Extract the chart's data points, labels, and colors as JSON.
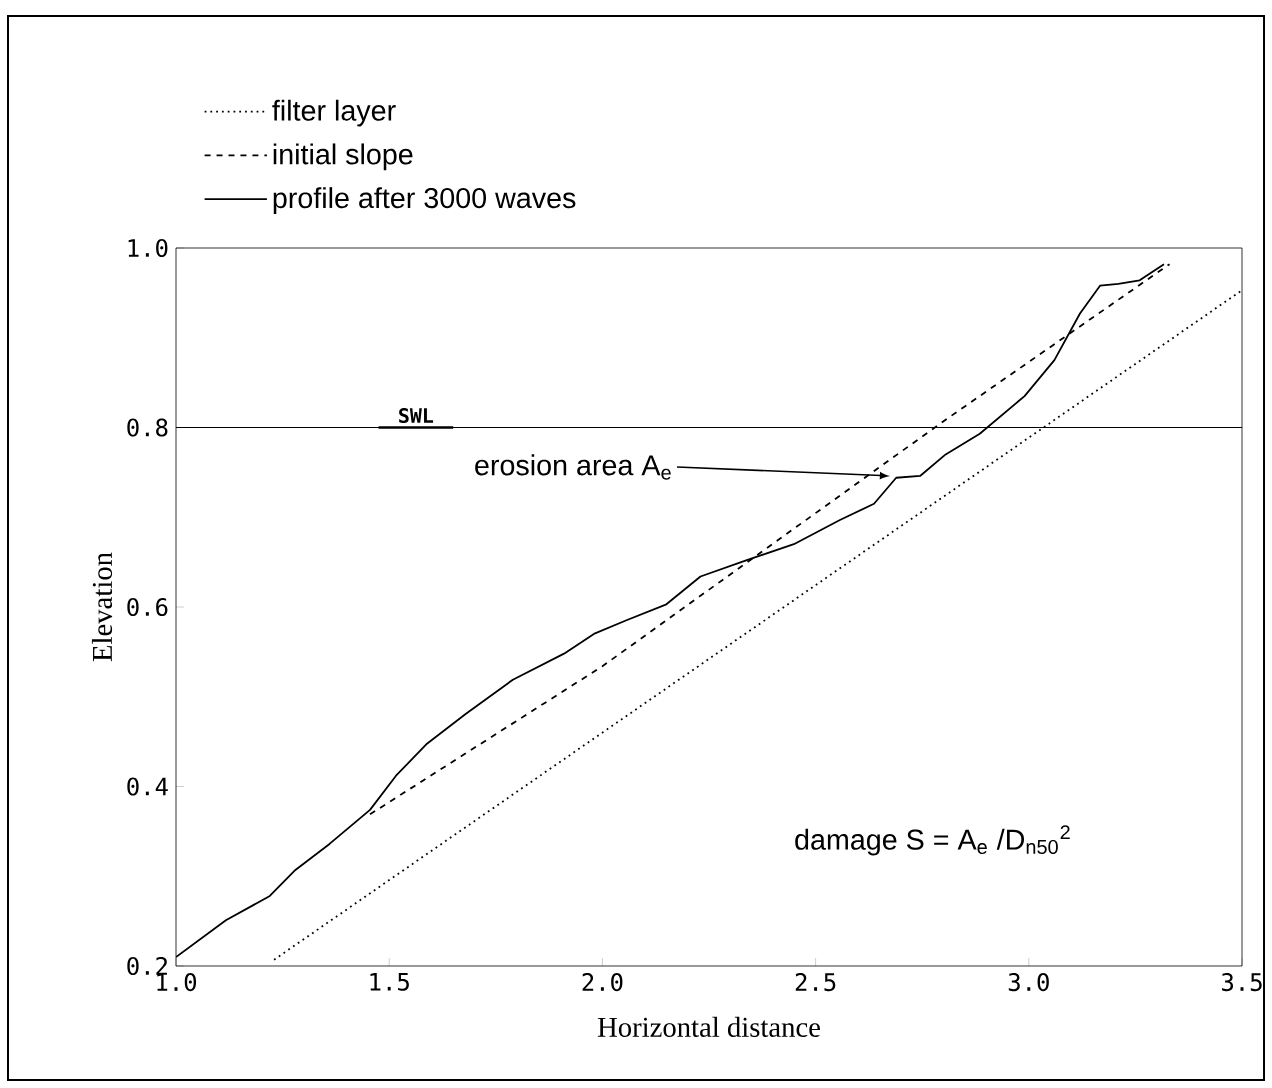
{
  "chart_data": {
    "type": "line",
    "xlabel": "Horizontal distance",
    "ylabel": "Elevation",
    "xlim": [
      1.0,
      3.5
    ],
    "ylim": [
      0.2,
      1.0
    ],
    "xticks": [
      {
        "value": 1.0,
        "label": "1.0"
      },
      {
        "value": 1.5,
        "label": "1.5"
      },
      {
        "value": 2.0,
        "label": "2.0"
      },
      {
        "value": 2.5,
        "label": "2.5"
      },
      {
        "value": 3.0,
        "label": "3.0"
      },
      {
        "value": 3.5,
        "label": "3.5"
      }
    ],
    "yticks": [
      {
        "value": 0.2,
        "label": "0.2"
      },
      {
        "value": 0.4,
        "label": "0.4"
      },
      {
        "value": 0.6,
        "label": "0.6"
      },
      {
        "value": 0.8,
        "label": "0.8"
      },
      {
        "value": 1.0,
        "label": "1.0"
      }
    ],
    "grid": false,
    "legend": "top",
    "marker": "none",
    "series": [
      {
        "name": "filter layer",
        "color": "#000000",
        "line_style": "dotted",
        "x": [
          1.23,
          3.5
        ],
        "values": [
          0.207,
          0.953
        ]
      },
      {
        "name": "initial slope",
        "color": "#000000",
        "line_style": "dashed",
        "x": [
          1.455,
          2.0,
          2.8,
          3.33
        ],
        "values": [
          0.369,
          0.534,
          0.807,
          0.982
        ]
      },
      {
        "name": "profile after 3000 waves",
        "color": "#000000",
        "line_style": "solid",
        "x": [
          1.0,
          1.117,
          1.22,
          1.28,
          1.36,
          1.455,
          1.516,
          1.587,
          1.68,
          1.79,
          1.91,
          1.98,
          2.055,
          2.15,
          2.23,
          2.337,
          2.449,
          2.557,
          2.637,
          2.689,
          2.745,
          2.805,
          2.885,
          2.99,
          3.06,
          3.12,
          3.167,
          3.21,
          3.26,
          3.317
        ],
        "values": [
          0.21,
          0.251,
          0.278,
          0.307,
          0.336,
          0.374,
          0.412,
          0.447,
          0.481,
          0.519,
          0.548,
          0.57,
          0.585,
          0.603,
          0.634,
          0.652,
          0.67,
          0.697,
          0.715,
          0.744,
          0.746,
          0.77,
          0.793,
          0.835,
          0.875,
          0.927,
          0.958,
          0.96,
          0.964,
          0.982
        ]
      }
    ],
    "ref_lines": [
      {
        "axis": "y",
        "value": 0.8,
        "label": "SWL",
        "line_style": "solid"
      }
    ],
    "annotations": [
      {
        "text": "erosion area A$_{e}$",
        "x": 2.675,
        "y": 0.746
      },
      "damage S = A$_{e}$ /D$_{n50}$$^{2}$"
    ]
  }
}
